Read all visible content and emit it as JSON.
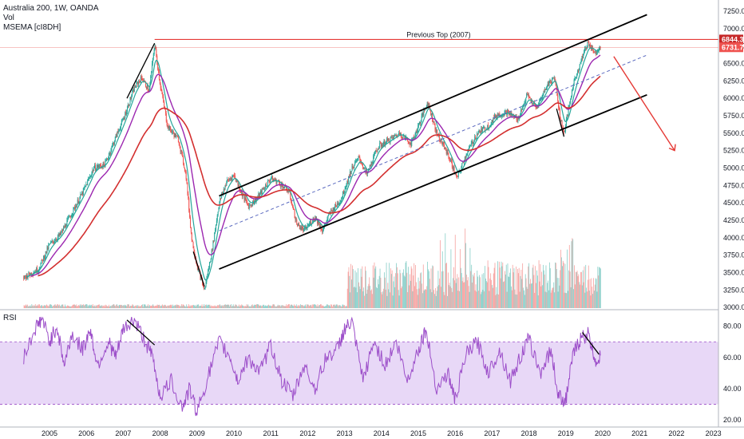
{
  "legend": {
    "symbol_line": "Australia 200, 1W, OANDA",
    "vol_label": "Vol",
    "ma_label": "MSEMA [cI8DH]",
    "rsi_label": "RSI"
  },
  "annotations": {
    "previous_top": "Previous Top (2007)"
  },
  "colors": {
    "bull": "#26a69a",
    "bear": "#ef5350",
    "resistance": "#e53935",
    "channel": "#000000",
    "ma_fast": "#26a69a",
    "ma_mid": "#9c27b0",
    "ma_slow": "#d32f2f",
    "rsi": "#9c4ec9",
    "rsi_band": "#e8d8f7",
    "arrow": "#e53935"
  },
  "chart_data": [
    {
      "type": "line",
      "title": "Australia 200, 1W, OANDA",
      "x_labels": [
        "2005",
        "2006",
        "2007",
        "2008",
        "2009",
        "2010",
        "2011",
        "2012",
        "2013",
        "2014",
        "2015",
        "2016",
        "2017",
        "2018",
        "2019",
        "2020",
        "2021",
        "2022",
        "2023"
      ],
      "y_ticks": [
        "7250.0",
        "7000.0",
        "6750.0",
        "6500.0",
        "6250.0",
        "6000.0",
        "5750.0",
        "5500.0",
        "5250.0",
        "5000.0",
        "4750.0",
        "4500.0",
        "4250.0",
        "4000.0",
        "3750.0",
        "3500.0",
        "3250.0",
        "3000.0"
      ],
      "ylim": [
        2990,
        7250
      ],
      "price_badges": [
        "6844.3",
        "6731.7"
      ],
      "resistance_level": 6844.3,
      "series": [
        {
          "name": "Australia 200",
          "points": [
            [
              2004.3,
              3430
            ],
            [
              2004.7,
              3550
            ],
            [
              2005.0,
              3900
            ],
            [
              2005.3,
              4050
            ],
            [
              2005.6,
              4350
            ],
            [
              2005.9,
              4650
            ],
            [
              2006.2,
              5000
            ],
            [
              2006.5,
              5050
            ],
            [
              2006.8,
              5450
            ],
            [
              2007.0,
              5700
            ],
            [
              2007.3,
              6150
            ],
            [
              2007.5,
              6300
            ],
            [
              2007.7,
              6100
            ],
            [
              2007.85,
              6780
            ],
            [
              2008.0,
              6200
            ],
            [
              2008.2,
              5600
            ],
            [
              2008.5,
              5400
            ],
            [
              2008.7,
              4900
            ],
            [
              2008.85,
              4000
            ],
            [
              2009.0,
              3600
            ],
            [
              2009.2,
              3250
            ],
            [
              2009.4,
              3800
            ],
            [
              2009.6,
              4500
            ],
            [
              2009.8,
              4800
            ],
            [
              2010.0,
              4900
            ],
            [
              2010.2,
              4650
            ],
            [
              2010.4,
              4450
            ],
            [
              2010.6,
              4550
            ],
            [
              2010.8,
              4700
            ],
            [
              2011.0,
              4850
            ],
            [
              2011.2,
              4800
            ],
            [
              2011.5,
              4650
            ],
            [
              2011.7,
              4200
            ],
            [
              2011.9,
              4100
            ],
            [
              2012.2,
              4300
            ],
            [
              2012.4,
              4100
            ],
            [
              2012.6,
              4350
            ],
            [
              2012.9,
              4550
            ],
            [
              2013.2,
              5000
            ],
            [
              2013.4,
              5150
            ],
            [
              2013.6,
              4900
            ],
            [
              2013.9,
              5300
            ],
            [
              2014.2,
              5400
            ],
            [
              2014.5,
              5500
            ],
            [
              2014.8,
              5350
            ],
            [
              2015.0,
              5600
            ],
            [
              2015.25,
              5950
            ],
            [
              2015.5,
              5500
            ],
            [
              2015.8,
              5200
            ],
            [
              2016.05,
              4850
            ],
            [
              2016.3,
              5200
            ],
            [
              2016.6,
              5500
            ],
            [
              2016.9,
              5600
            ],
            [
              2017.1,
              5750
            ],
            [
              2017.4,
              5800
            ],
            [
              2017.7,
              5700
            ],
            [
              2017.95,
              6050
            ],
            [
              2018.2,
              5850
            ],
            [
              2018.5,
              6200
            ],
            [
              2018.7,
              6300
            ],
            [
              2018.85,
              5700
            ],
            [
              2018.95,
              5500
            ],
            [
              2019.2,
              6200
            ],
            [
              2019.45,
              6600
            ],
            [
              2019.6,
              6800
            ],
            [
              2019.8,
              6650
            ],
            [
              2019.95,
              6760
            ]
          ]
        },
        {
          "name": "Vol",
          "points": [
            [
              2004.3,
              10
            ],
            [
              2013.0,
              10
            ],
            [
              2013.1,
              200
            ],
            [
              2015.0,
              300
            ],
            [
              2016.0,
              500
            ],
            [
              2018.0,
              250
            ],
            [
              2019.0,
              400
            ],
            [
              2019.95,
              300
            ]
          ]
        }
      ]
    },
    {
      "type": "line",
      "title": "RSI",
      "y_ticks": [
        "80.00",
        "60.00",
        "40.00",
        "20.00"
      ],
      "ylim": [
        17,
        87
      ],
      "band": [
        30,
        70
      ],
      "series": [
        {
          "name": "RSI",
          "points": [
            [
              2004.3,
              60
            ],
            [
              2004.6,
              78
            ],
            [
              2004.8,
              85
            ],
            [
              2005.0,
              70
            ],
            [
              2005.2,
              80
            ],
            [
              2005.4,
              55
            ],
            [
              2005.6,
              75
            ],
            [
              2005.9,
              65
            ],
            [
              2006.1,
              78
            ],
            [
              2006.3,
              55
            ],
            [
              2006.6,
              70
            ],
            [
              2006.8,
              60
            ],
            [
              2007.0,
              78
            ],
            [
              2007.3,
              84
            ],
            [
              2007.6,
              70
            ],
            [
              2007.8,
              60
            ],
            [
              2008.0,
              35
            ],
            [
              2008.3,
              45
            ],
            [
              2008.6,
              28
            ],
            [
              2008.8,
              40
            ],
            [
              2009.0,
              25
            ],
            [
              2009.3,
              48
            ],
            [
              2009.6,
              70
            ],
            [
              2009.9,
              60
            ],
            [
              2010.1,
              45
            ],
            [
              2010.4,
              60
            ],
            [
              2010.7,
              50
            ],
            [
              2011.0,
              68
            ],
            [
              2011.3,
              45
            ],
            [
              2011.6,
              35
            ],
            [
              2011.9,
              55
            ],
            [
              2012.2,
              40
            ],
            [
              2012.5,
              60
            ],
            [
              2012.8,
              65
            ],
            [
              2013.0,
              78
            ],
            [
              2013.2,
              82
            ],
            [
              2013.5,
              45
            ],
            [
              2013.8,
              70
            ],
            [
              2014.1,
              55
            ],
            [
              2014.4,
              70
            ],
            [
              2014.7,
              45
            ],
            [
              2015.0,
              65
            ],
            [
              2015.2,
              78
            ],
            [
              2015.5,
              40
            ],
            [
              2015.8,
              50
            ],
            [
              2016.0,
              33
            ],
            [
              2016.3,
              62
            ],
            [
              2016.6,
              70
            ],
            [
              2016.9,
              50
            ],
            [
              2017.2,
              65
            ],
            [
              2017.5,
              45
            ],
            [
              2017.8,
              62
            ],
            [
              2018.0,
              72
            ],
            [
              2018.3,
              50
            ],
            [
              2018.6,
              65
            ],
            [
              2018.8,
              35
            ],
            [
              2019.0,
              33
            ],
            [
              2019.2,
              62
            ],
            [
              2019.4,
              72
            ],
            [
              2019.6,
              75
            ],
            [
              2019.8,
              58
            ],
            [
              2019.95,
              60
            ]
          ]
        }
      ]
    }
  ]
}
